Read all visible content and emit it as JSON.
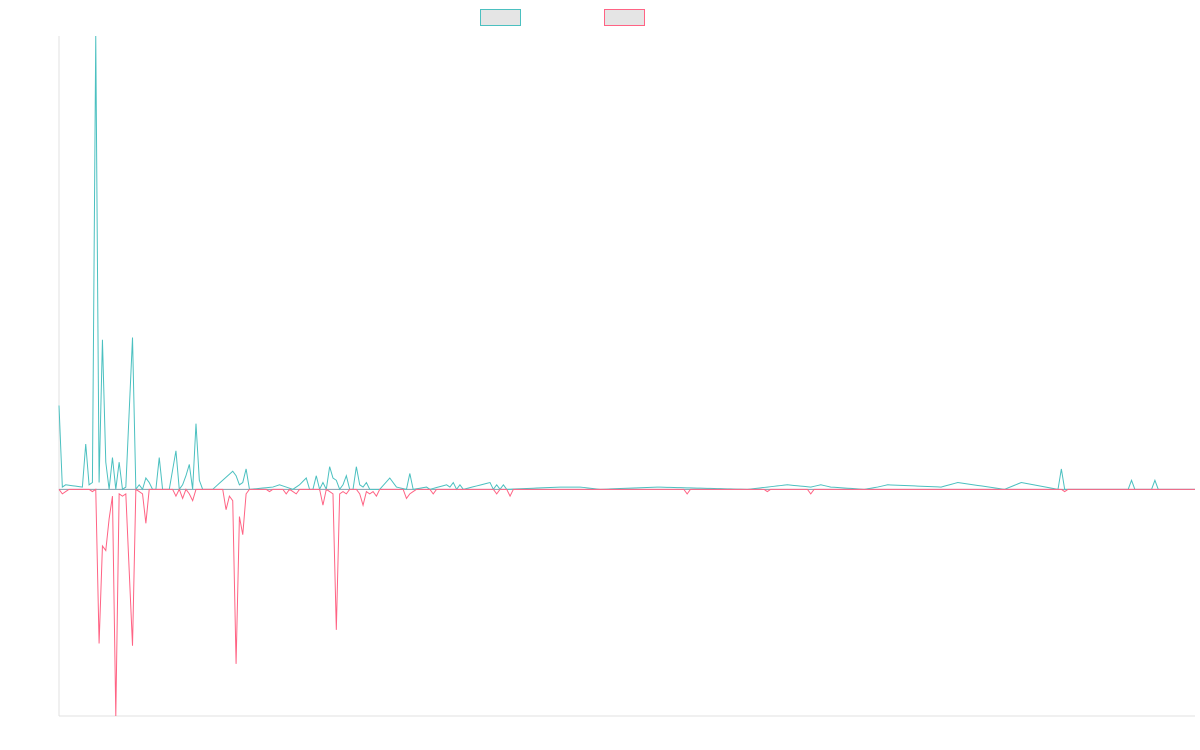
{
  "chart_data": {
    "type": "line",
    "title": "",
    "xlabel": "",
    "ylabel": "",
    "grid": false,
    "legend_position": "top-center",
    "x_count": 341,
    "ylim": [
      -1,
      2
    ],
    "baseline": 0,
    "colors": {
      "series_a": "#4bc0c0",
      "series_b": "#ff6384",
      "legend_fill": "#e5e5e5",
      "axis": "#e0e0e0",
      "zero_line": "#8a9aaa"
    },
    "series": [
      {
        "name": "",
        "key": "a",
        "points": [
          [
            0,
            0.37
          ],
          [
            1,
            0.01
          ],
          [
            2,
            0.02
          ],
          [
            7,
            0.01
          ],
          [
            8,
            0.2
          ],
          [
            9,
            0.02
          ],
          [
            10,
            0.03
          ],
          [
            11,
            2.0
          ],
          [
            12,
            0.03
          ],
          [
            13,
            0.66
          ],
          [
            14,
            0.12
          ],
          [
            15,
            0.0
          ],
          [
            16,
            0.14
          ],
          [
            17,
            0.0
          ],
          [
            18,
            0.12
          ],
          [
            19,
            0.0
          ],
          [
            20,
            0.01
          ],
          [
            22,
            0.67
          ],
          [
            23,
            0.0
          ],
          [
            24,
            0.02
          ],
          [
            25,
            0.0
          ],
          [
            26,
            0.05
          ],
          [
            27,
            0.03
          ],
          [
            28,
            0.0
          ],
          [
            29,
            0.0
          ],
          [
            30,
            0.14
          ],
          [
            31,
            0.0
          ],
          [
            33,
            0.0
          ],
          [
            35,
            0.17
          ],
          [
            36,
            0.0
          ],
          [
            37,
            0.02
          ],
          [
            38,
            0.06
          ],
          [
            39,
            0.11
          ],
          [
            40,
            0.0
          ],
          [
            41,
            0.29
          ],
          [
            42,
            0.04
          ],
          [
            43,
            0.0
          ],
          [
            46,
            0.0
          ],
          [
            52,
            0.08
          ],
          [
            53,
            0.06
          ],
          [
            54,
            0.02
          ],
          [
            55,
            0.03
          ],
          [
            56,
            0.09
          ],
          [
            57,
            0.0
          ],
          [
            64,
            0.01
          ],
          [
            66,
            0.02
          ],
          [
            70,
            0.0
          ],
          [
            72,
            0.02
          ],
          [
            74,
            0.05
          ],
          [
            75,
            0.0
          ],
          [
            76,
            0.0
          ],
          [
            77,
            0.06
          ],
          [
            78,
            0.0
          ],
          [
            79,
            0.03
          ],
          [
            80,
            0.0
          ],
          [
            81,
            0.1
          ],
          [
            82,
            0.05
          ],
          [
            83,
            0.04
          ],
          [
            84,
            0.0
          ],
          [
            85,
            0.02
          ],
          [
            86,
            0.06
          ],
          [
            87,
            0.0
          ],
          [
            88,
            0.0
          ],
          [
            89,
            0.1
          ],
          [
            90,
            0.02
          ],
          [
            91,
            0.01
          ],
          [
            92,
            0.03
          ],
          [
            93,
            0.0
          ],
          [
            94,
            0.0
          ],
          [
            96,
            0.0
          ],
          [
            99,
            0.05
          ],
          [
            100,
            0.03
          ],
          [
            101,
            0.01
          ],
          [
            104,
            0.0
          ],
          [
            105,
            0.07
          ],
          [
            106,
            0.0
          ],
          [
            110,
            0.01
          ],
          [
            111,
            0.0
          ],
          [
            116,
            0.02
          ],
          [
            117,
            0.01
          ],
          [
            118,
            0.03
          ],
          [
            119,
            0.0
          ],
          [
            120,
            0.02
          ],
          [
            121,
            0.0
          ],
          [
            129,
            0.03
          ],
          [
            130,
            0.0
          ],
          [
            131,
            0.02
          ],
          [
            132,
            0.0
          ],
          [
            133,
            0.02
          ],
          [
            134,
            0.0
          ],
          [
            150,
            0.01
          ],
          [
            156,
            0.01
          ],
          [
            162,
            0.0
          ],
          [
            179,
            0.01
          ],
          [
            206,
            0.0
          ],
          [
            218,
            0.02
          ],
          [
            225,
            0.01
          ],
          [
            228,
            0.02
          ],
          [
            231,
            0.01
          ],
          [
            241,
            0.0
          ],
          [
            245,
            0.01
          ],
          [
            248,
            0.02
          ],
          [
            264,
            0.01
          ],
          [
            269,
            0.03
          ],
          [
            283,
            0.0
          ],
          [
            288,
            0.03
          ],
          [
            299,
            0.0
          ],
          [
            300,
            0.09
          ],
          [
            301,
            0.0
          ],
          [
            320,
            0.0
          ],
          [
            321,
            0.04
          ],
          [
            322,
            0.0
          ],
          [
            327,
            0.0
          ],
          [
            328,
            0.04
          ],
          [
            329,
            0.0
          ],
          [
            340,
            0.0
          ]
        ]
      },
      {
        "name": "",
        "key": "b",
        "points": [
          [
            0,
            0.0
          ],
          [
            1,
            -0.02
          ],
          [
            2,
            -0.01
          ],
          [
            3,
            0.0
          ],
          [
            9,
            0.0
          ],
          [
            10,
            -0.01
          ],
          [
            11,
            0.0
          ],
          [
            12,
            -0.68
          ],
          [
            13,
            -0.25
          ],
          [
            14,
            -0.27
          ],
          [
            15,
            -0.13
          ],
          [
            16,
            -0.03
          ],
          [
            17,
            -1.0
          ],
          [
            18,
            -0.02
          ],
          [
            19,
            -0.03
          ],
          [
            20,
            -0.02
          ],
          [
            22,
            -0.69
          ],
          [
            23,
            0.0
          ],
          [
            24,
            -0.01
          ],
          [
            25,
            -0.02
          ],
          [
            26,
            -0.15
          ],
          [
            27,
            0.0
          ],
          [
            34,
            0.0
          ],
          [
            35,
            -0.03
          ],
          [
            36,
            0.0
          ],
          [
            37,
            -0.04
          ],
          [
            38,
            0.0
          ],
          [
            39,
            -0.02
          ],
          [
            40,
            -0.05
          ],
          [
            41,
            0.0
          ],
          [
            49,
            0.0
          ],
          [
            50,
            -0.09
          ],
          [
            51,
            -0.03
          ],
          [
            52,
            -0.05
          ],
          [
            53,
            -0.77
          ],
          [
            54,
            -0.12
          ],
          [
            55,
            -0.2
          ],
          [
            56,
            -0.02
          ],
          [
            57,
            0.0
          ],
          [
            62,
            0.0
          ],
          [
            63,
            -0.01
          ],
          [
            64,
            0.0
          ],
          [
            67,
            0.0
          ],
          [
            68,
            -0.02
          ],
          [
            69,
            0.0
          ],
          [
            71,
            -0.02
          ],
          [
            72,
            0.0
          ],
          [
            78,
            0.0
          ],
          [
            79,
            -0.07
          ],
          [
            80,
            0.0
          ],
          [
            82,
            -0.02
          ],
          [
            83,
            -0.62
          ],
          [
            84,
            -0.02
          ],
          [
            85,
            -0.01
          ],
          [
            86,
            -0.02
          ],
          [
            87,
            0.0
          ],
          [
            89,
            0.0
          ],
          [
            90,
            -0.02
          ],
          [
            91,
            -0.07
          ],
          [
            92,
            -0.01
          ],
          [
            93,
            -0.02
          ],
          [
            94,
            -0.01
          ],
          [
            95,
            -0.03
          ],
          [
            96,
            0.0
          ],
          [
            103,
            0.0
          ],
          [
            104,
            -0.04
          ],
          [
            105,
            -0.02
          ],
          [
            106,
            -0.01
          ],
          [
            107,
            0.0
          ],
          [
            111,
            0.0
          ],
          [
            112,
            -0.02
          ],
          [
            113,
            0.0
          ],
          [
            130,
            0.0
          ],
          [
            131,
            -0.02
          ],
          [
            132,
            0.0
          ],
          [
            134,
            0.0
          ],
          [
            135,
            -0.03
          ],
          [
            136,
            0.0
          ],
          [
            187,
            0.0
          ],
          [
            188,
            -0.02
          ],
          [
            189,
            0.0
          ],
          [
            211,
            0.0
          ],
          [
            212,
            -0.01
          ],
          [
            213,
            0.0
          ],
          [
            224,
            0.0
          ],
          [
            225,
            -0.02
          ],
          [
            226,
            0.0
          ],
          [
            300,
            0.0
          ],
          [
            301,
            -0.01
          ],
          [
            302,
            0.0
          ],
          [
            340,
            0.0
          ]
        ]
      }
    ]
  }
}
